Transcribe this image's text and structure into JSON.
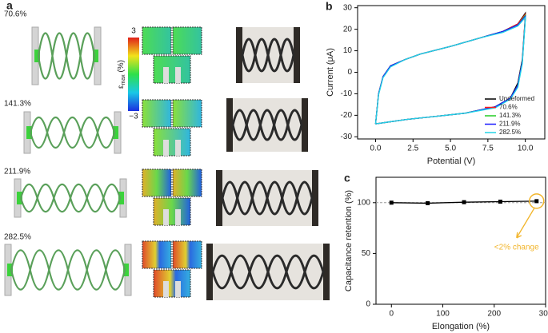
{
  "figure_a": {
    "label": "a",
    "strains": [
      "70.6%",
      "141.3%",
      "211.9%",
      "282.5%"
    ],
    "colorbar": {
      "max": "3",
      "min": "−3",
      "symbol": "ε",
      "subscript": "max",
      "unit": " (%)"
    }
  },
  "chart_data": [
    {
      "type": "line",
      "panel_label": "b",
      "x_label": "Potential (V)",
      "y_label": "Current (μA)",
      "x": [
        0,
        0.2,
        0.5,
        1,
        2,
        3,
        5,
        7,
        8.5,
        9.5,
        10,
        10,
        9.8,
        9.5,
        9,
        8,
        6,
        4,
        2,
        1,
        0
      ],
      "series": [
        {
          "name": "Undeformed",
          "color": "#000000",
          "values": [
            -24,
            -10,
            -2,
            3,
            6,
            8.5,
            12,
            16,
            19,
            22.5,
            27.5,
            26,
            6,
            -5,
            -12,
            -16,
            -19,
            -20.5,
            -22,
            -23,
            -24
          ]
        },
        {
          "name": "70.6%",
          "color": "#ff1a1a",
          "values": [
            -24,
            -10,
            -2,
            3,
            6,
            8.5,
            12,
            16,
            19,
            22.5,
            27,
            25.5,
            5,
            -6,
            -12,
            -16,
            -19,
            -20.5,
            -22,
            -23,
            -24
          ]
        },
        {
          "name": "141.3%",
          "color": "#22cc22",
          "values": [
            -24,
            -10,
            -2,
            3,
            6,
            8.5,
            12,
            16,
            19,
            22,
            26.5,
            25,
            5,
            -6,
            -12,
            -16,
            -19,
            -20.5,
            -22,
            -23,
            -24
          ]
        },
        {
          "name": "211.9%",
          "color": "#1a1aff",
          "values": [
            -24,
            -10,
            -2,
            3,
            6,
            8.5,
            12,
            16,
            19,
            22,
            26,
            25,
            5,
            -6,
            -12,
            -16,
            -19,
            -20.5,
            -22,
            -23,
            -24
          ]
        },
        {
          "name": "282.5%",
          "color": "#22d4e6",
          "values": [
            -24,
            -10.5,
            -2.5,
            2.5,
            6,
            8.5,
            12,
            16,
            18.5,
            21.5,
            25.5,
            24.5,
            4,
            -7,
            -12.5,
            -16.5,
            -19,
            -20.5,
            -22,
            -23,
            -24
          ]
        }
      ],
      "xlim": [
        -1.2,
        11.3
      ],
      "ylim": [
        -31,
        31
      ],
      "xticks": [
        {
          "value": 0,
          "label": "0.0"
        },
        {
          "value": 2.5,
          "label": "2.5"
        },
        {
          "value": 5,
          "label": "5.0"
        },
        {
          "value": 7.5,
          "label": "7.5"
        },
        {
          "value": 10,
          "label": "10.0"
        }
      ],
      "yticks": [
        -30,
        -20,
        -10,
        0,
        10,
        20,
        30
      ],
      "legend": "lower right"
    },
    {
      "type": "line",
      "panel_label": "c",
      "x_label": "Elongation (%)",
      "y_label": "Capacitance retention (%)",
      "x": [
        0,
        70.6,
        141.3,
        211.9,
        282.5
      ],
      "series": [
        {
          "name": null,
          "color": "#000000",
          "values": [
            100,
            99.5,
            100.5,
            101,
            101.5
          ]
        }
      ],
      "marker": "square",
      "reference_line": 100,
      "xlim": [
        -30,
        300
      ],
      "ylim": [
        0,
        125
      ],
      "xticks": [
        0,
        100,
        200,
        300
      ],
      "yticks": [
        0,
        50,
        100
      ],
      "annotation": {
        "text": "<2% change",
        "color": "#f2b52b"
      }
    }
  ]
}
